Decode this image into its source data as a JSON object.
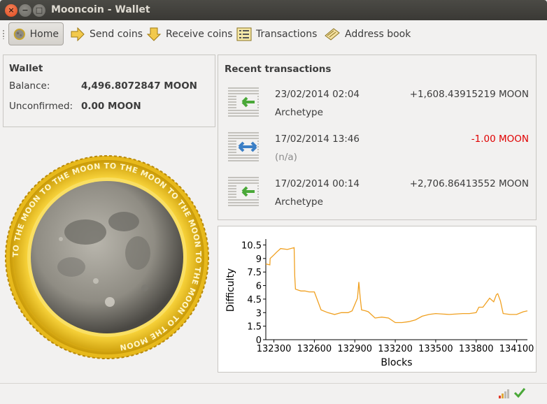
{
  "window": {
    "title": "Mooncoin - Wallet",
    "close_glyph": "×",
    "min_glyph": "−",
    "max_glyph": "□"
  },
  "toolbar": {
    "home": "Home",
    "send": "Send coins",
    "receive": "Receive coins",
    "transactions": "Transactions",
    "addressbook": "Address book"
  },
  "wallet": {
    "heading": "Wallet",
    "balance_label": "Balance:",
    "balance_value": "4,496.8072847 MOON",
    "unconfirmed_label": "Unconfirmed:",
    "unconfirmed_value": "0.00 MOON"
  },
  "coin_text": "TO THE MOON TO THE MOON TO THE MOON TO THE MOON TO THE MOON TO THE MOON ",
  "recent": {
    "heading": "Recent transactions",
    "items": [
      {
        "date": "23/02/2014 02:04",
        "amount": "+1,608.43915219 MOON",
        "desc": "Archetype",
        "kind": "receive",
        "amount_color": "#3c3c3c",
        "desc_color": "#3c3c3c"
      },
      {
        "date": "17/02/2014 13:46",
        "amount": "-1.00 MOON",
        "desc": "(n/a)",
        "kind": "self",
        "amount_color": "#e00000",
        "desc_color": "#8a8a8a"
      },
      {
        "date": "17/02/2014 00:14",
        "amount": "+2,706.86413552 MOON",
        "desc": "Archetype",
        "kind": "receive",
        "amount_color": "#3c3c3c",
        "desc_color": "#3c3c3c"
      }
    ]
  },
  "chart_data": {
    "type": "line",
    "xlabel": "Blocks",
    "ylabel": "Difficulty",
    "xlim": [
      132240,
      134180
    ],
    "ylim": [
      0,
      11
    ],
    "xticks": [
      132300,
      132600,
      132900,
      133200,
      133500,
      133800,
      134100
    ],
    "yticks": [
      0,
      1.5,
      3,
      4.5,
      6,
      7.5,
      9,
      10.5
    ],
    "ytick_labels": [
      "0",
      "1.5",
      "3",
      "4.5",
      "6",
      "7.5",
      "9",
      "10.5"
    ],
    "color": "#f0a020",
    "series": [
      {
        "x": [
          132240,
          132270,
          132272,
          132300,
          132320,
          132350,
          132400,
          132450,
          132455,
          132460,
          132500,
          132530,
          132560,
          132600,
          132650,
          132700,
          132750,
          132800,
          132850,
          132880,
          132920,
          132930,
          132940,
          132950,
          132980,
          133000,
          133050,
          133100,
          133150,
          133200,
          133250,
          133300,
          133350,
          133400,
          133450,
          133500,
          133600,
          133700,
          133750,
          133800,
          133820,
          133850,
          133900,
          133930,
          133950,
          133960,
          133980,
          134000,
          134050,
          134100,
          134150,
          134180
        ],
        "y": [
          8.4,
          8.3,
          9.0,
          9.4,
          9.7,
          10.1,
          10.0,
          10.2,
          7.0,
          5.6,
          5.4,
          5.4,
          5.3,
          5.3,
          3.3,
          3.0,
          2.8,
          3.0,
          3.0,
          3.2,
          4.6,
          6.4,
          4.7,
          3.3,
          3.2,
          3.1,
          2.4,
          2.5,
          2.4,
          1.9,
          1.9,
          2.0,
          2.2,
          2.6,
          2.8,
          2.9,
          2.8,
          2.9,
          2.9,
          3.0,
          3.6,
          3.6,
          4.6,
          4.2,
          5.0,
          5.1,
          4.3,
          2.9,
          2.8,
          2.8,
          3.1,
          3.2
        ]
      }
    ]
  }
}
